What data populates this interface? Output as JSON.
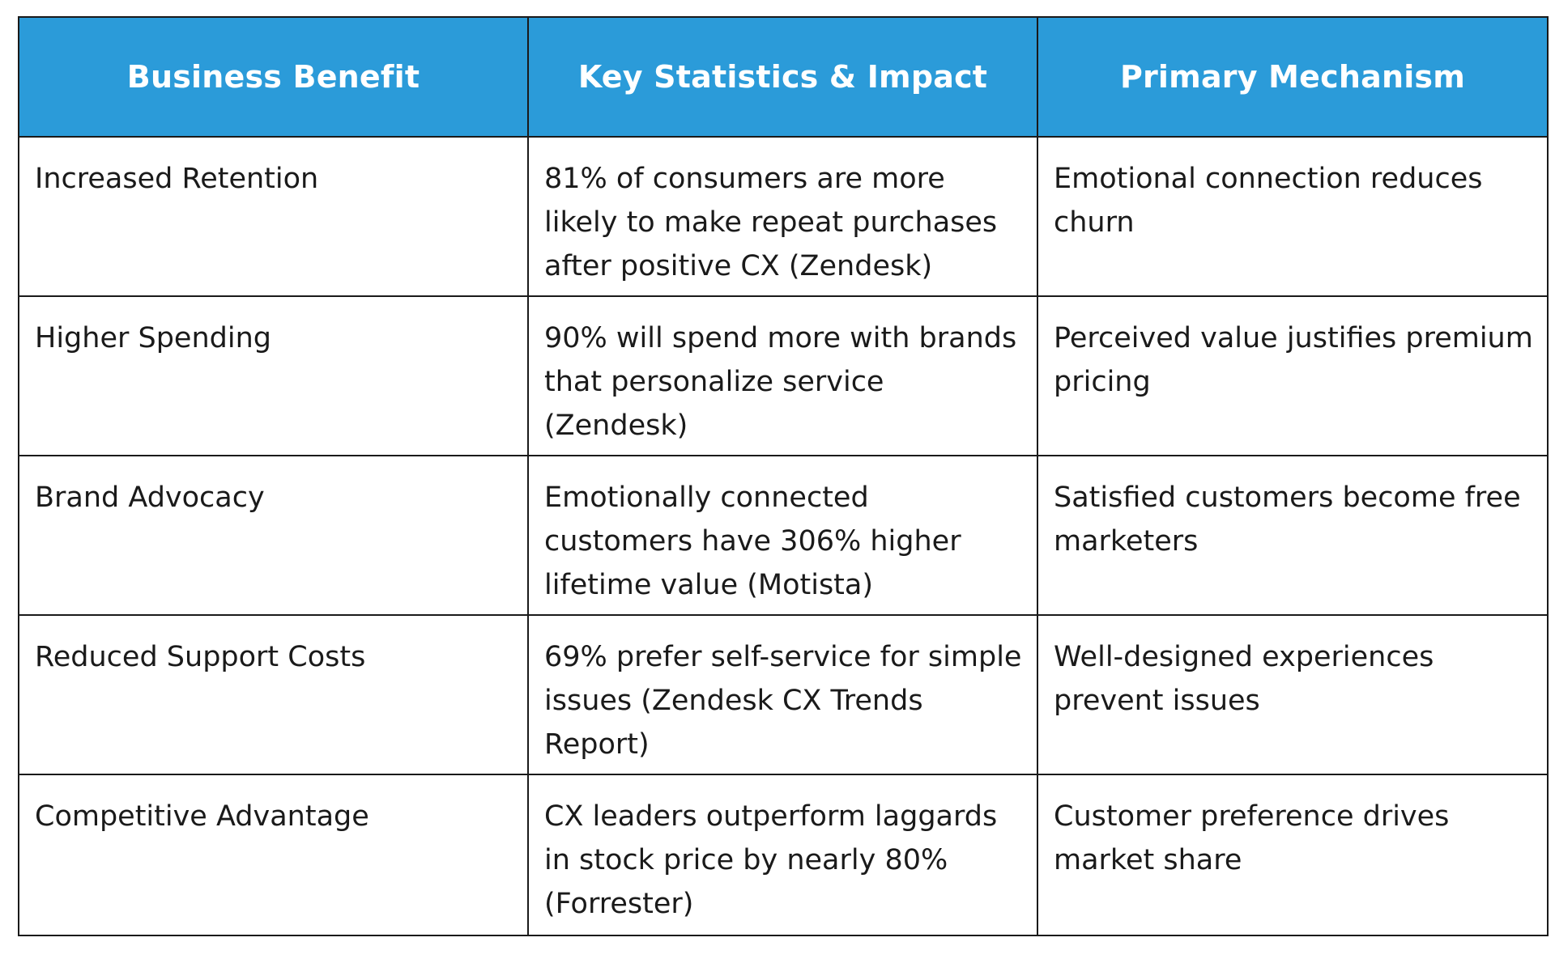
{
  "table": {
    "headers": [
      "Business Benefit",
      "Key Statistics & Impact",
      "Primary Mechanism"
    ],
    "rows": [
      {
        "benefit": "Increased Retention",
        "statistic": "81% of consumers are more likely to make repeat purchases after positive CX (Zendesk)",
        "mechanism": "Emotional connection reduces churn"
      },
      {
        "benefit": "Higher Spending",
        "statistic": "90% will spend more with brands that personalize service (Zendesk)",
        "mechanism": "Perceived value justifies premium pricing"
      },
      {
        "benefit": "Brand Advocacy",
        "statistic": "Emotionally connected customers have 306% higher lifetime value (Motista)",
        "mechanism": "Satisfied customers become free marketers"
      },
      {
        "benefit": "Reduced Support Costs",
        "statistic": "69% prefer self-service for simple issues (Zendesk CX Trends Report)",
        "mechanism": "Well-designed experiences prevent issues"
      },
      {
        "benefit": "Competitive Advantage",
        "statistic": "CX leaders outperform laggards in stock price by nearly 80% (Forrester)",
        "mechanism": "Customer preference drives market share"
      }
    ]
  },
  "colors": {
    "header_background": "#2b9bd9",
    "header_text": "#ffffff",
    "body_text": "#1a1a1a",
    "border": "#1a1a1a"
  }
}
